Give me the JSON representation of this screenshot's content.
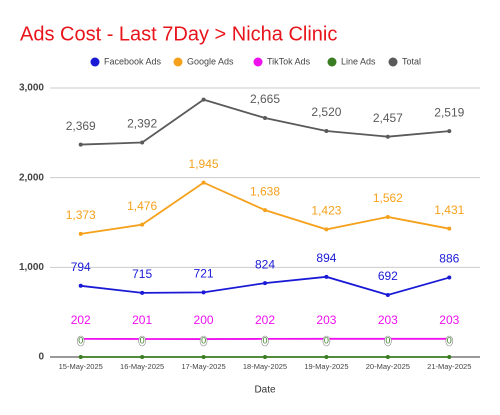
{
  "chart_data": {
    "type": "line",
    "title": "Ads Cost - Last 7Day > Nicha Clinic",
    "x_label": "Date",
    "categories": [
      "15-May-2025",
      "16-May-2025",
      "17-May-2025",
      "18-May-2025",
      "19-May-2025",
      "20-May-2025",
      "21-May-2025"
    ],
    "series": [
      {
        "name": "Facebook Ads",
        "color": "#1a1ad6",
        "values": [
          794,
          715,
          721,
          824,
          894,
          692,
          886
        ]
      },
      {
        "name": "Google Ads",
        "color": "#f5a11c",
        "values": [
          1373,
          1476,
          1945,
          1638,
          1423,
          1562,
          1431
        ],
        "value_labels": [
          "1,373",
          "1,476",
          "1,945",
          "1,638",
          "1,423",
          "1,562",
          "1,431"
        ]
      },
      {
        "name": "TikTok Ads",
        "color": "#ee10ee",
        "values": [
          202,
          201,
          200,
          202,
          203,
          203,
          203
        ]
      },
      {
        "name": "Line Ads",
        "color": "#3a7d22",
        "values": [
          0,
          0,
          0,
          0,
          0,
          0,
          0
        ]
      },
      {
        "name": "Total",
        "color": "#5a5a5a",
        "values": [
          2369,
          2392,
          2870,
          2665,
          2520,
          2457,
          2519
        ],
        "value_labels": [
          "2,369",
          "2,392",
          null,
          "2,665",
          "2,520",
          "2,457",
          "2,519"
        ]
      }
    ],
    "ylim": [
      0,
      3000
    ],
    "yticks": [
      0,
      {
        "value": 1000,
        "label": "1,000"
      },
      {
        "value": 2000,
        "label": "2,000"
      },
      {
        "value": 3000,
        "label": "3,000"
      }
    ],
    "grid": true,
    "legend": "top"
  }
}
